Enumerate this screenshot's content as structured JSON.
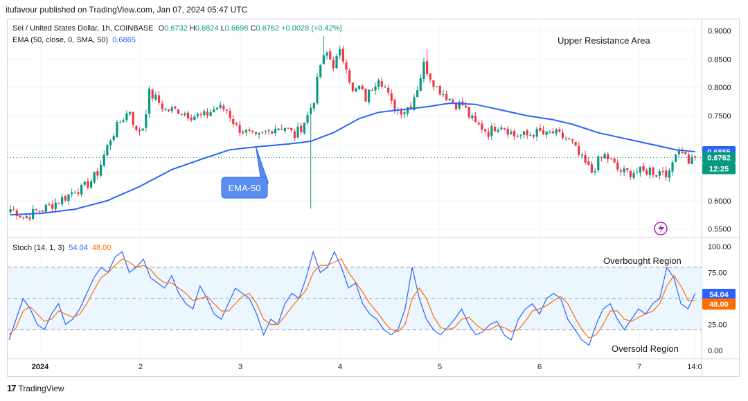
{
  "header": {
    "publisher": "itufavour published on TradingView.com, Jan 07, 2024 05:47 UTC"
  },
  "legend": {
    "symbol": "Sei / United States Dollar, 1h, COINBASE",
    "o_label": "O",
    "o": "0.6732",
    "h_label": "H",
    "h": "0.6824",
    "l_label": "L",
    "l": "0.6698",
    "c_label": "C",
    "c": "0.6762",
    "change": "+0.0028 (+0.42%)",
    "ema_label": "EMA (50, close, 0, SMA, 50)",
    "ema_value": "0.6865",
    "stoch_label": "Stoch (14, 1, 3)",
    "stoch_k": "54.04",
    "stoch_d": "48.00"
  },
  "annotations": {
    "upper_resistance": "Upper Resistance Area",
    "overbought": "Overbought Region",
    "oversold": "Oversold Region",
    "ema_callout": "EMA-50"
  },
  "price_badges": {
    "ema": "0.6865",
    "close": "0.6762",
    "countdown": "12:25"
  },
  "stoch_badges": {
    "k": "54.04",
    "d": "48.00"
  },
  "footer": {
    "brand": "TradingView"
  },
  "colors": {
    "up": "#089981",
    "down": "#f23645",
    "ema": "#2962ff",
    "stoch_k": "#2962ff",
    "stoch_d": "#ff6d00",
    "band": "#e3f2fd"
  },
  "chart_data": [
    {
      "type": "candlestick",
      "title": "Sei / United States Dollar, 1h, COINBASE",
      "y_ticks": [
        0.55,
        0.6,
        0.65,
        0.7,
        0.75,
        0.8,
        0.85,
        0.9
      ],
      "y_tick_labels": [
        "0.5500",
        "0.6000",
        "",
        "",
        "0.7500",
        "0.8000",
        "0.8500",
        "0.9000"
      ],
      "ylim": [
        0.535,
        0.92
      ],
      "x_ticks": [
        "2024",
        "2",
        "3",
        "4",
        "5",
        "6",
        "7",
        "14:0"
      ],
      "price_anchors": [
        [
          0,
          0.585
        ],
        [
          2,
          0.58
        ],
        [
          4,
          0.57
        ],
        [
          6,
          0.575
        ],
        [
          8,
          0.582
        ],
        [
          10,
          0.585
        ],
        [
          12,
          0.59
        ],
        [
          15,
          0.6
        ],
        [
          18,
          0.61
        ],
        [
          20,
          0.62
        ],
        [
          22,
          0.62
        ],
        [
          25,
          0.635
        ],
        [
          27,
          0.65
        ],
        [
          29,
          0.68
        ],
        [
          31,
          0.71
        ],
        [
          34,
          0.74
        ],
        [
          37,
          0.76
        ],
        [
          39,
          0.72
        ],
        [
          41,
          0.73
        ],
        [
          43,
          0.79
        ],
        [
          45,
          0.78
        ],
        [
          48,
          0.76
        ],
        [
          52,
          0.76
        ],
        [
          56,
          0.75
        ],
        [
          60,
          0.75
        ],
        [
          64,
          0.765
        ],
        [
          67,
          0.76
        ],
        [
          70,
          0.73
        ],
        [
          73,
          0.72
        ],
        [
          76,
          0.71
        ],
        [
          79,
          0.72
        ],
        [
          82,
          0.73
        ],
        [
          85,
          0.73
        ],
        [
          88,
          0.715
        ],
        [
          90,
          0.73
        ],
        [
          92,
          0.75
        ],
        [
          94,
          0.78
        ],
        [
          96,
          0.84
        ],
        [
          98,
          0.86
        ],
        [
          100,
          0.84
        ],
        [
          102,
          0.86
        ],
        [
          104,
          0.84
        ],
        [
          106,
          0.79
        ],
        [
          108,
          0.8
        ],
        [
          110,
          0.78
        ],
        [
          112,
          0.8
        ],
        [
          114,
          0.82
        ],
        [
          116,
          0.8
        ],
        [
          118,
          0.77
        ],
        [
          120,
          0.76
        ],
        [
          122,
          0.76
        ],
        [
          124,
          0.77
        ],
        [
          126,
          0.8
        ],
        [
          128,
          0.84
        ],
        [
          130,
          0.82
        ],
        [
          132,
          0.8
        ],
        [
          134,
          0.79
        ],
        [
          136,
          0.78
        ],
        [
          138,
          0.77
        ],
        [
          140,
          0.77
        ],
        [
          142,
          0.75
        ],
        [
          144,
          0.735
        ],
        [
          146,
          0.73
        ],
        [
          148,
          0.72
        ],
        [
          150,
          0.73
        ],
        [
          152,
          0.735
        ],
        [
          154,
          0.725
        ],
        [
          156,
          0.715
        ],
        [
          158,
          0.715
        ],
        [
          160,
          0.715
        ],
        [
          162,
          0.72
        ],
        [
          164,
          0.72
        ],
        [
          166,
          0.715
        ],
        [
          168,
          0.72
        ],
        [
          170,
          0.715
        ],
        [
          172,
          0.71
        ],
        [
          174,
          0.7
        ],
        [
          176,
          0.68
        ],
        [
          178,
          0.665
        ],
        [
          180,
          0.65
        ],
        [
          182,
          0.67
        ],
        [
          184,
          0.68
        ],
        [
          186,
          0.67
        ],
        [
          188,
          0.655
        ],
        [
          190,
          0.65
        ],
        [
          192,
          0.65
        ],
        [
          194,
          0.652
        ],
        [
          196,
          0.65
        ],
        [
          198,
          0.655
        ],
        [
          200,
          0.648
        ],
        [
          202,
          0.655
        ],
        [
          204,
          0.645
        ],
        [
          206,
          0.69
        ],
        [
          208,
          0.69
        ],
        [
          210,
          0.67
        ],
        [
          212,
          0.676
        ]
      ],
      "spikes": [
        [
          93,
          0.586
        ],
        [
          129,
          0.868
        ],
        [
          97,
          0.89
        ]
      ],
      "ema50": [
        [
          0,
          0.575
        ],
        [
          10,
          0.578
        ],
        [
          20,
          0.585
        ],
        [
          30,
          0.6
        ],
        [
          40,
          0.625
        ],
        [
          50,
          0.655
        ],
        [
          60,
          0.675
        ],
        [
          68,
          0.69
        ],
        [
          76,
          0.695
        ],
        [
          86,
          0.7
        ],
        [
          93,
          0.705
        ],
        [
          100,
          0.72
        ],
        [
          108,
          0.745
        ],
        [
          114,
          0.756
        ],
        [
          120,
          0.76
        ],
        [
          128,
          0.765
        ],
        [
          136,
          0.772
        ],
        [
          144,
          0.77
        ],
        [
          152,
          0.76
        ],
        [
          160,
          0.75
        ],
        [
          168,
          0.743
        ],
        [
          174,
          0.735
        ],
        [
          182,
          0.72
        ],
        [
          190,
          0.71
        ],
        [
          198,
          0.7
        ],
        [
          206,
          0.69
        ],
        [
          212,
          0.6865
        ]
      ],
      "last_close": 0.6762,
      "ema_last": 0.6865
    },
    {
      "type": "line",
      "title": "Stoch (14, 1, 3)",
      "y_ticks": [
        0,
        25,
        50,
        75,
        100
      ],
      "y_tick_labels": [
        "0.00",
        "25.00",
        "",
        "75.00",
        "100.00"
      ],
      "ylim": [
        -8,
        108
      ],
      "band": [
        20,
        80
      ],
      "series": [
        {
          "name": "K",
          "values": [
            10,
            30,
            50,
            40,
            25,
            20,
            35,
            45,
            25,
            30,
            40,
            55,
            70,
            80,
            75,
            90,
            95,
            75,
            80,
            88,
            70,
            65,
            60,
            72,
            55,
            45,
            40,
            62,
            50,
            35,
            30,
            45,
            60,
            55,
            50,
            35,
            15,
            30,
            25,
            45,
            55,
            50,
            70,
            95,
            75,
            80,
            95,
            80,
            60,
            65,
            45,
            35,
            30,
            20,
            15,
            20,
            40,
            80,
            50,
            30,
            20,
            15,
            22,
            30,
            40,
            25,
            15,
            18,
            25,
            28,
            15,
            10,
            30,
            40,
            45,
            35,
            50,
            55,
            50,
            30,
            20,
            10,
            5,
            25,
            40,
            45,
            30,
            20,
            30,
            40,
            35,
            45,
            50,
            80,
            70,
            45,
            40,
            55
          ]
        },
        {
          "name": "D",
          "values": [
            15,
            22,
            38,
            42,
            35,
            28,
            30,
            38,
            35,
            32,
            35,
            45,
            58,
            70,
            75,
            82,
            88,
            85,
            80,
            82,
            78,
            70,
            65,
            65,
            60,
            55,
            48,
            50,
            52,
            45,
            38,
            38,
            45,
            52,
            55,
            45,
            30,
            25,
            25,
            33,
            42,
            50,
            58,
            75,
            82,
            82,
            85,
            88,
            75,
            66,
            56,
            45,
            37,
            28,
            20,
            18,
            25,
            50,
            60,
            50,
            33,
            22,
            20,
            22,
            30,
            32,
            25,
            20,
            20,
            24,
            22,
            18,
            20,
            28,
            38,
            40,
            43,
            48,
            52,
            45,
            32,
            20,
            12,
            15,
            25,
            38,
            38,
            30,
            28,
            32,
            35,
            38,
            45,
            62,
            72,
            62,
            48,
            48
          ]
        }
      ],
      "last_k": 54.04,
      "last_d": 48.0
    }
  ]
}
